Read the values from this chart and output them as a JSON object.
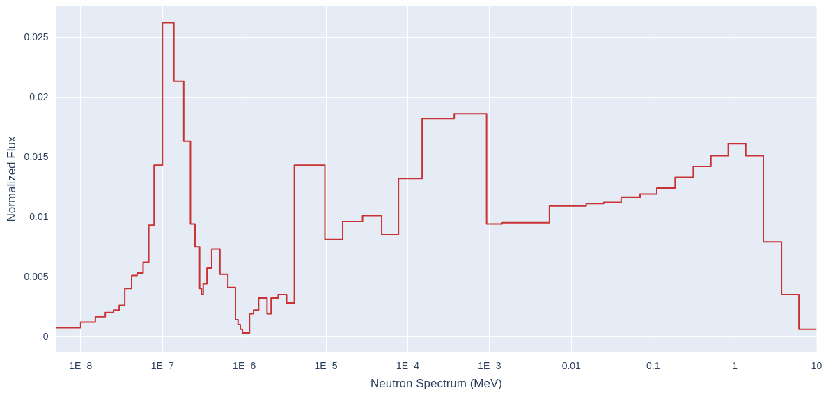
{
  "chart_data": {
    "type": "step",
    "xlabel": "Neutron Spectrum (MeV)",
    "ylabel": "Normalized Flux",
    "log": "x",
    "grid": true,
    "xlim": [
      5e-09,
      10
    ],
    "ylim": [
      -0.0013,
      0.0276
    ],
    "xticks": [
      {
        "value": 1e-08,
        "label": "1E−8"
      },
      {
        "value": 1e-07,
        "label": "1E−7"
      },
      {
        "value": 1e-06,
        "label": "1E−6"
      },
      {
        "value": 1e-05,
        "label": "1E−5"
      },
      {
        "value": 0.0001,
        "label": "1E−4"
      },
      {
        "value": 0.001,
        "label": "1E−3"
      },
      0.01,
      0.1,
      1,
      10
    ],
    "yticks": [
      0,
      0.005,
      0.01,
      0.015,
      0.02,
      0.025
    ],
    "x": [
      5e-09,
      1e-08,
      1.51e-08,
      2e-08,
      2.52e-08,
      2.96e-08,
      3.46e-08,
      4.2e-08,
      4.9e-08,
      5.8e-08,
      6.8e-08,
      7.9e-08,
      1e-07,
      1.38e-07,
      1.82e-07,
      2.2e-07,
      2.5e-07,
      2.85e-07,
      3e-07,
      3.15e-07,
      3.5e-07,
      4e-07,
      5.05e-07,
      6.3e-07,
      7.8e-07,
      8.4e-07,
      8.95e-07,
      9.5e-07,
      1.16e-06,
      1.3e-06,
      1.5e-06,
      1.9e-06,
      2.13e-06,
      2.6e-06,
      3.3e-06,
      4.1e-06,
      9.7e-06,
      1.6e-05,
      2.8e-05,
      4.8e-05,
      7.7e-05,
      0.00015,
      0.00037,
      0.00092,
      0.00143,
      0.0054,
      0.0152,
      0.0249,
      0.0407,
      0.0693,
      0.111,
      0.186,
      0.31,
      0.51,
      0.83,
      1.36,
      2.23,
      3.72,
      6.08,
      10
    ],
    "series": [
      {
        "color": "#c83232",
        "values": [
          0.00074,
          0.0012,
          0.00165,
          0.002,
          0.0022,
          0.0026,
          0.004,
          0.0051,
          0.0053,
          0.0062,
          0.0093,
          0.0143,
          0.0262,
          0.0213,
          0.0163,
          0.0094,
          0.0075,
          0.004,
          0.0035,
          0.0044,
          0.0057,
          0.0073,
          0.0052,
          0.0041,
          0.0014,
          0.001,
          0.0006,
          0.0003,
          0.0019,
          0.0022,
          0.0032,
          0.0019,
          0.0032,
          0.0035,
          0.0028,
          0.0143,
          0.0081,
          0.0096,
          0.0101,
          0.0085,
          0.0132,
          0.0182,
          0.0186,
          0.0094,
          0.0095,
          0.0109,
          0.0111,
          0.0112,
          0.0116,
          0.0119,
          0.0124,
          0.0133,
          0.0142,
          0.0151,
          0.0161,
          0.0151,
          0.0079,
          0.0035,
          0.0006,
          0.0006
        ]
      }
    ]
  }
}
